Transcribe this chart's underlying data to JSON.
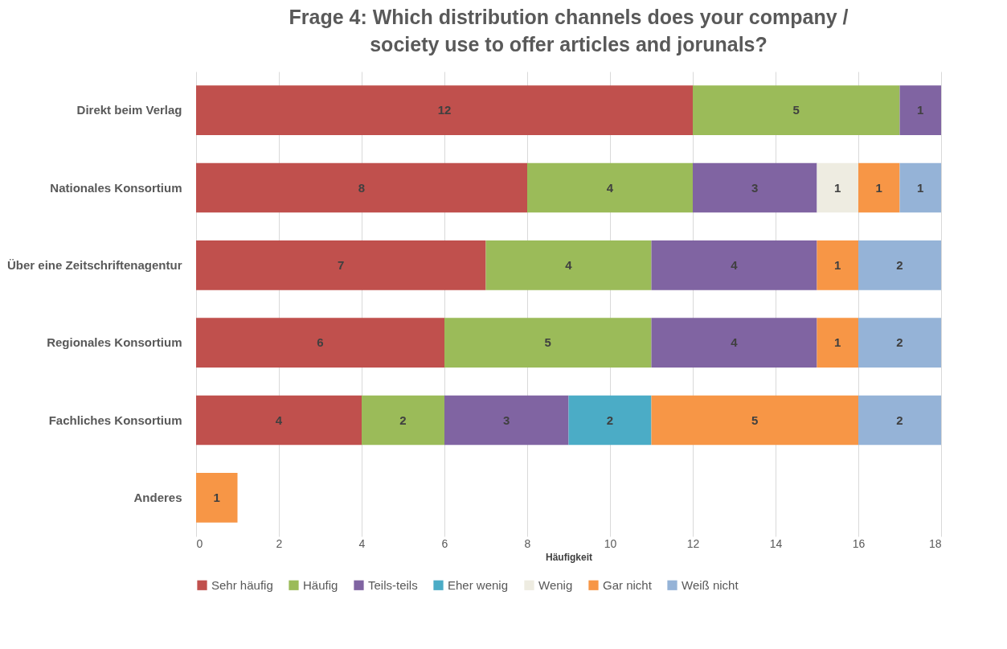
{
  "chart_data": {
    "type": "bar",
    "orientation": "horizontal",
    "stacked": true,
    "title": "Frage 4: Which distribution channels does your company / society use to offer articles and jorunals?",
    "xlabel": "Häufigkeit",
    "categories": [
      "Direkt beim Verlag",
      "Nationales Konsortium",
      "Über eine Zeitschriftenagentur",
      "Regionales Konsortium",
      "Fachliches Konsortium",
      "Anderes"
    ],
    "series": [
      {
        "name": "Sehr häufig",
        "color": "#c0504d",
        "values": [
          12,
          8,
          7,
          6,
          4,
          null
        ]
      },
      {
        "name": "Häufig",
        "color": "#9bbb59",
        "values": [
          5,
          4,
          4,
          5,
          2,
          null
        ]
      },
      {
        "name": "Teils-teils",
        "color": "#8064a2",
        "values": [
          1,
          3,
          4,
          4,
          3,
          null
        ]
      },
      {
        "name": "Eher wenig",
        "color": "#4bacc6",
        "values": [
          null,
          null,
          null,
          null,
          2,
          null
        ]
      },
      {
        "name": "Wenig",
        "color": "#eeece1",
        "values": [
          null,
          1,
          null,
          null,
          null,
          null
        ]
      },
      {
        "name": "Gar nicht",
        "color": "#f79646",
        "values": [
          null,
          1,
          1,
          1,
          5,
          1
        ]
      },
      {
        "name": "Weiß nicht",
        "color": "#95b3d7",
        "values": [
          null,
          1,
          2,
          2,
          2,
          null
        ]
      }
    ],
    "xlim": [
      0,
      18
    ],
    "xticks": [
      0,
      2,
      4,
      6,
      8,
      10,
      12,
      14,
      16,
      18
    ],
    "grid": "x",
    "legend": "bottom",
    "data_labels": true
  }
}
